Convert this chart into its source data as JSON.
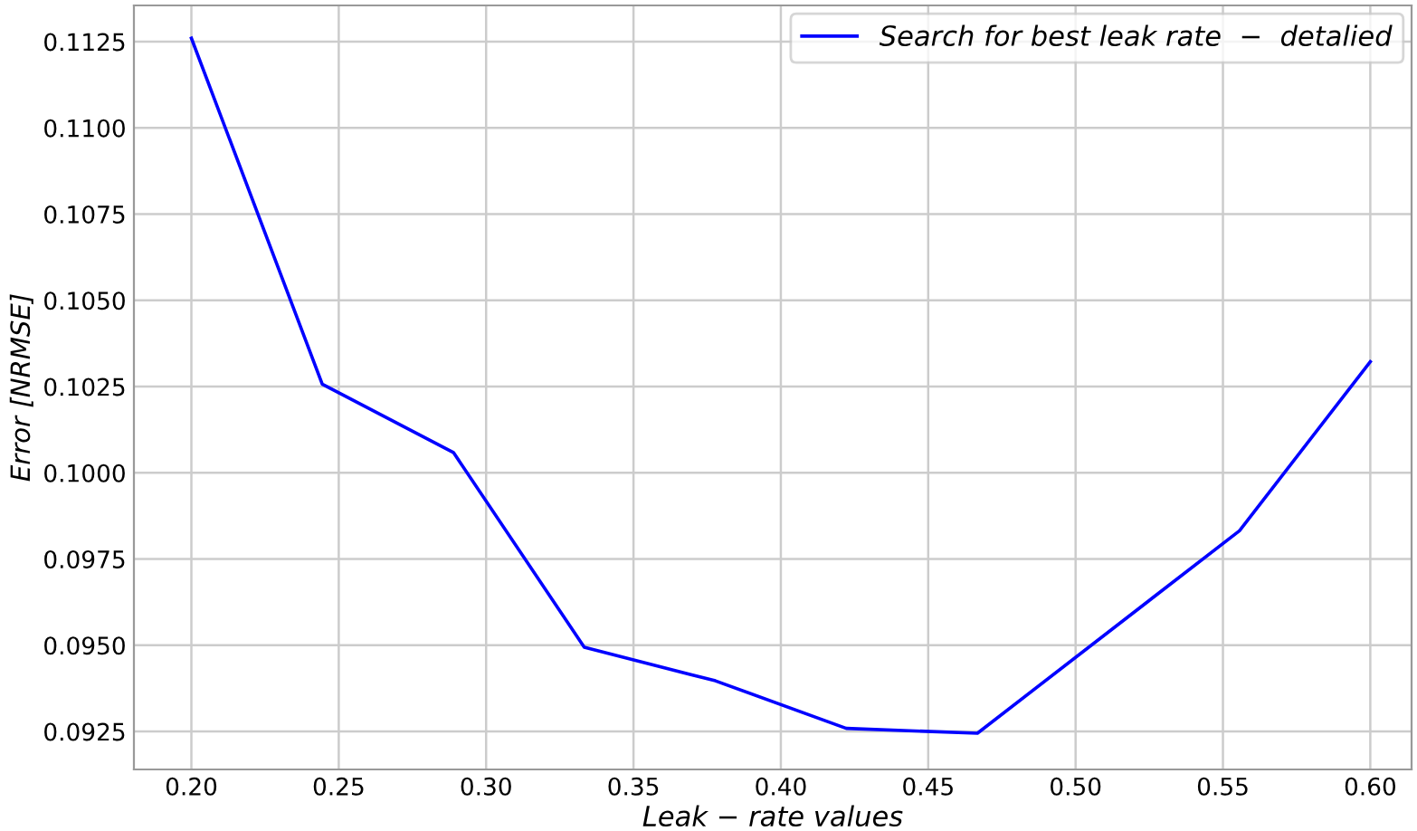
{
  "chart_data": {
    "type": "line",
    "xlabel": "Leak − rate values",
    "ylabel": "Error [NRMSE]",
    "x": [
      0.2,
      0.2444,
      0.2889,
      0.3333,
      0.3778,
      0.4222,
      0.4667,
      0.5556,
      0.6
    ],
    "series": [
      {
        "name": "Search for best leak rate  −  detalied",
        "color": "#0000ff",
        "values": [
          0.1126,
          0.10257,
          0.10059,
          0.09494,
          0.09397,
          0.09259,
          0.09245,
          0.09832,
          0.10322
        ]
      }
    ],
    "xlim": [
      0.1805,
      0.614
    ],
    "ylim": [
      0.0914,
      0.11355
    ],
    "xticks": [
      {
        "value": 0.2,
        "label": "0.20"
      },
      {
        "value": 0.25,
        "label": "0.25"
      },
      {
        "value": 0.3,
        "label": "0.30"
      },
      {
        "value": 0.35,
        "label": "0.35"
      },
      {
        "value": 0.4,
        "label": "0.40"
      },
      {
        "value": 0.45,
        "label": "0.45"
      },
      {
        "value": 0.5,
        "label": "0.50"
      },
      {
        "value": 0.55,
        "label": "0.55"
      },
      {
        "value": 0.6,
        "label": "0.60"
      }
    ],
    "yticks": [
      {
        "value": 0.0925,
        "label": "0.0925"
      },
      {
        "value": 0.095,
        "label": "0.0950"
      },
      {
        "value": 0.0975,
        "label": "0.0975"
      },
      {
        "value": 0.1,
        "label": "0.1000"
      },
      {
        "value": 0.1025,
        "label": "0.1025"
      },
      {
        "value": 0.105,
        "label": "0.1050"
      },
      {
        "value": 0.1075,
        "label": "0.1075"
      },
      {
        "value": 0.11,
        "label": "0.1100"
      },
      {
        "value": 0.1125,
        "label": "0.1125"
      }
    ],
    "grid": true,
    "legend": "top right",
    "marker": "none",
    "line_style": "solid"
  }
}
